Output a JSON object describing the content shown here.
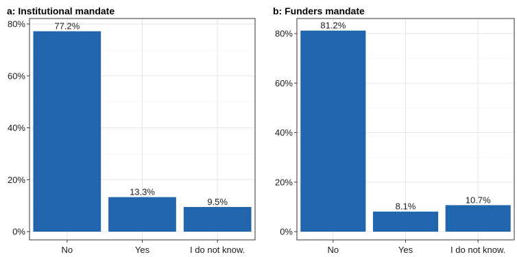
{
  "chart_data": [
    {
      "type": "bar",
      "title": "a: Institutional mandate",
      "categories": [
        "No",
        "Yes",
        "I do not know."
      ],
      "values": [
        77.2,
        13.3,
        9.5
      ],
      "value_labels": [
        "77.2%",
        "13.3%",
        "9.5%"
      ],
      "ylim": [
        0,
        80
      ],
      "yticks": [
        0,
        20,
        40,
        60,
        80
      ],
      "ytick_labels": [
        "0%",
        "20%",
        "40%",
        "60%",
        "80%"
      ],
      "xlabel": "",
      "ylabel": "",
      "grid": true,
      "bar_color": "#2166ac"
    },
    {
      "type": "bar",
      "title": "b: Funders mandate",
      "categories": [
        "No",
        "Yes",
        "I do not know."
      ],
      "values": [
        81.2,
        8.1,
        10.7
      ],
      "value_labels": [
        "81.2%",
        "8.1%",
        "10.7%"
      ],
      "ylim": [
        0,
        80
      ],
      "yticks": [
        0,
        20,
        40,
        60,
        80
      ],
      "ytick_labels": [
        "0%",
        "20%",
        "40%",
        "60%",
        "80%"
      ],
      "xlabel": "",
      "ylabel": "",
      "grid": true,
      "bar_color": "#2166ac"
    }
  ]
}
